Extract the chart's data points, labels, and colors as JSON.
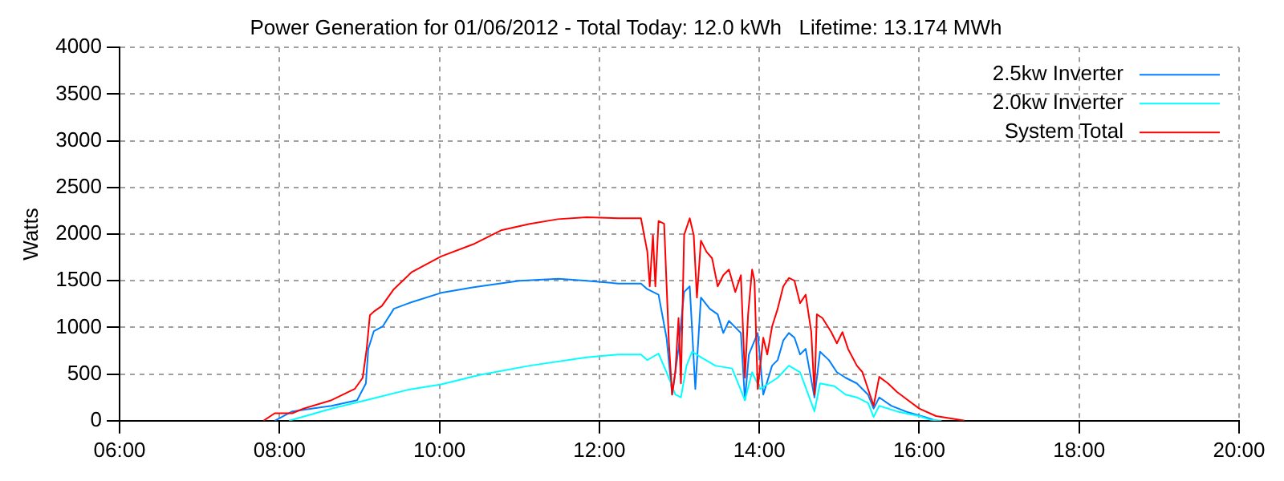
{
  "chart_data": {
    "type": "line",
    "title": "Power Generation for 01/06/2012 - Total Today: 12.0 kWh   Lifetime: 13.174 MWh",
    "ylabel": "Watts",
    "xlim": [
      6,
      20
    ],
    "xticks": [
      {
        "value": 6,
        "label": "06:00"
      },
      {
        "value": 8,
        "label": "08:00"
      },
      {
        "value": 10,
        "label": "10:00"
      },
      {
        "value": 12,
        "label": "12:00"
      },
      {
        "value": 14,
        "label": "14:00"
      },
      {
        "value": 16,
        "label": "16:00"
      },
      {
        "value": 18,
        "label": "18:00"
      },
      {
        "value": 20,
        "label": "20:00"
      }
    ],
    "ylim": [
      0,
      4000
    ],
    "yticks": [
      0,
      500,
      1000,
      1500,
      2000,
      2500,
      3000,
      3500,
      4000
    ],
    "grid": true,
    "legend": "top right",
    "line_style": "solid",
    "marker": "none",
    "series": [
      {
        "name": "2.5kw Inverter",
        "color": "#0080ff",
        "x": [
          7.94,
          8.16,
          8.65,
          8.97,
          9.08,
          9.11,
          9.18,
          9.29,
          9.43,
          9.65,
          10.02,
          10.43,
          11.0,
          11.49,
          11.84,
          12.24,
          12.52,
          12.6,
          12.67,
          12.74,
          12.84,
          12.91,
          12.99,
          13.06,
          13.13,
          13.2,
          13.27,
          13.38,
          13.48,
          13.55,
          13.62,
          13.77,
          13.82,
          13.87,
          13.98,
          14.05,
          14.16,
          14.23,
          14.3,
          14.37,
          14.44,
          14.51,
          14.58,
          14.69,
          14.76,
          14.87,
          14.97,
          15.08,
          15.22,
          15.36,
          15.43,
          15.5,
          15.65,
          15.86,
          16.07,
          16.21
        ],
        "values": [
          0,
          100,
          160,
          220,
          400,
          770,
          960,
          1010,
          1200,
          1270,
          1370,
          1430,
          1500,
          1520,
          1500,
          1470,
          1470,
          1410,
          1380,
          1350,
          890,
          280,
          770,
          1380,
          1440,
          340,
          1320,
          1200,
          1140,
          940,
          1070,
          940,
          220,
          710,
          940,
          280,
          590,
          650,
          860,
          940,
          890,
          710,
          770,
          250,
          740,
          650,
          520,
          460,
          400,
          280,
          130,
          250,
          160,
          90,
          40,
          0
        ]
      },
      {
        "name": "2.0kw Inverter",
        "color": "#00ffff",
        "x": [
          8.12,
          8.65,
          9.08,
          9.6,
          10.02,
          10.5,
          11.13,
          11.84,
          12.24,
          12.52,
          12.6,
          12.74,
          12.84,
          12.95,
          13.02,
          13.09,
          13.16,
          13.27,
          13.45,
          13.66,
          13.82,
          13.91,
          14.01,
          14.12,
          14.23,
          14.37,
          14.51,
          14.69,
          14.76,
          14.94,
          15.08,
          15.22,
          15.36,
          15.43,
          15.5,
          15.72,
          16.0,
          16.14,
          16.28
        ],
        "values": [
          0,
          130,
          220,
          330,
          390,
          490,
          590,
          680,
          710,
          710,
          650,
          720,
          520,
          280,
          250,
          590,
          740,
          680,
          590,
          560,
          220,
          520,
          340,
          400,
          460,
          590,
          520,
          100,
          400,
          370,
          280,
          250,
          190,
          40,
          160,
          100,
          50,
          10,
          0
        ]
      },
      {
        "name": "System Total",
        "color": "#ff0000",
        "x": [
          7.8,
          7.94,
          8.16,
          8.3,
          8.65,
          8.94,
          9.04,
          9.09,
          9.13,
          9.18,
          9.28,
          9.43,
          9.65,
          10.02,
          10.42,
          10.77,
          11.13,
          11.48,
          11.84,
          12.24,
          12.52,
          12.6,
          12.63,
          12.67,
          12.7,
          12.74,
          12.81,
          12.87,
          12.91,
          12.95,
          12.99,
          13.02,
          13.06,
          13.13,
          13.18,
          13.22,
          13.27,
          13.34,
          13.41,
          13.48,
          13.55,
          13.62,
          13.7,
          13.77,
          13.82,
          13.86,
          13.91,
          13.94,
          13.98,
          14.05,
          14.1,
          14.16,
          14.23,
          14.3,
          14.37,
          14.44,
          14.51,
          14.58,
          14.65,
          14.69,
          14.72,
          14.79,
          14.9,
          14.97,
          15.04,
          15.11,
          15.22,
          15.29,
          15.36,
          15.43,
          15.5,
          15.61,
          15.72,
          15.86,
          16.0,
          16.21,
          16.43,
          16.57
        ],
        "values": [
          0,
          80,
          80,
          130,
          220,
          340,
          460,
          770,
          1130,
          1170,
          1230,
          1410,
          1590,
          1760,
          1890,
          2040,
          2110,
          2160,
          2180,
          2170,
          2170,
          1810,
          1440,
          1990,
          1440,
          2140,
          2110,
          830,
          280,
          520,
          1100,
          400,
          1990,
          2170,
          1990,
          1320,
          1930,
          1810,
          1740,
          1440,
          1560,
          1620,
          1380,
          1560,
          460,
          1140,
          1620,
          1500,
          340,
          890,
          710,
          1010,
          1200,
          1440,
          1530,
          1500,
          1260,
          1350,
          950,
          280,
          1140,
          1100,
          950,
          830,
          950,
          770,
          590,
          520,
          340,
          160,
          470,
          400,
          310,
          220,
          130,
          50,
          20,
          0
        ]
      }
    ]
  }
}
